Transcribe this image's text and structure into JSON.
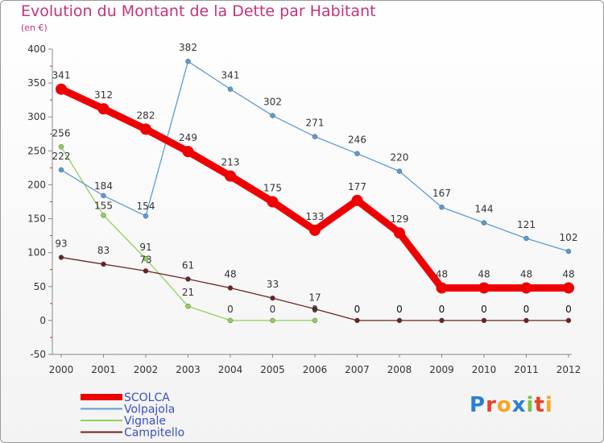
{
  "title": "Evolution du Montant de la Dette par Habitant",
  "subtitle": "(en €)",
  "logo": {
    "letters": [
      "P",
      "r",
      "o",
      "x",
      "i",
      "t",
      "i"
    ],
    "colors": [
      "#2a7fd4",
      "#e8412c",
      "#f5a623",
      "#2a7fd4",
      "#7cc242",
      "#e8412c",
      "#f5a623"
    ]
  },
  "chart_data": {
    "type": "line",
    "title": "Evolution du Montant de la Dette par Habitant",
    "ylabel": "(en €)",
    "x": [
      "2000",
      "2001",
      "2002",
      "2003",
      "2004",
      "2005",
      "2006",
      "2007",
      "2008",
      "2009",
      "2010",
      "2011",
      "2012"
    ],
    "ylim": [
      -50,
      400
    ],
    "yticks": [
      -50,
      0,
      50,
      100,
      150,
      200,
      250,
      300,
      350,
      400
    ],
    "grid": false,
    "legend": "bottom-left",
    "series": [
      {
        "name": "SCOLCA",
        "color": "#ee0000",
        "values": [
          341,
          312,
          282,
          249,
          213,
          175,
          133,
          177,
          129,
          48,
          48,
          48,
          48
        ],
        "labels": [
          "341",
          "312",
          "282",
          "249",
          "213",
          "175",
          "133",
          "177",
          "129",
          "48",
          "48",
          "48",
          "48"
        ]
      },
      {
        "name": "Volpajola",
        "color": "#5b9bd5",
        "values": [
          222,
          184,
          154,
          382,
          341,
          302,
          271,
          246,
          220,
          167,
          144,
          121,
          102
        ],
        "labels": [
          "222",
          "184",
          "154",
          "382",
          "341",
          "302",
          "271",
          "246",
          "220",
          "167",
          "144",
          "121",
          "102"
        ]
      },
      {
        "name": "Vignale",
        "color": "#8fd15a",
        "values": [
          256,
          155,
          91,
          21,
          0,
          0,
          0,
          null,
          null,
          null,
          null,
          null,
          null
        ],
        "labels": [
          "256",
          "155",
          "91",
          "21",
          "0",
          "0",
          "0",
          "",
          "",
          "",
          "",
          "",
          ""
        ]
      },
      {
        "name": "Campitello",
        "color": "#6b2222",
        "values": [
          93,
          83,
          73,
          61,
          48,
          33,
          17,
          0,
          0,
          0,
          0,
          0,
          0
        ],
        "labels": [
          "93",
          "83",
          "73",
          "61",
          "48",
          "33",
          "17",
          "0",
          "0",
          "0",
          "0",
          "0",
          "0"
        ]
      }
    ]
  }
}
